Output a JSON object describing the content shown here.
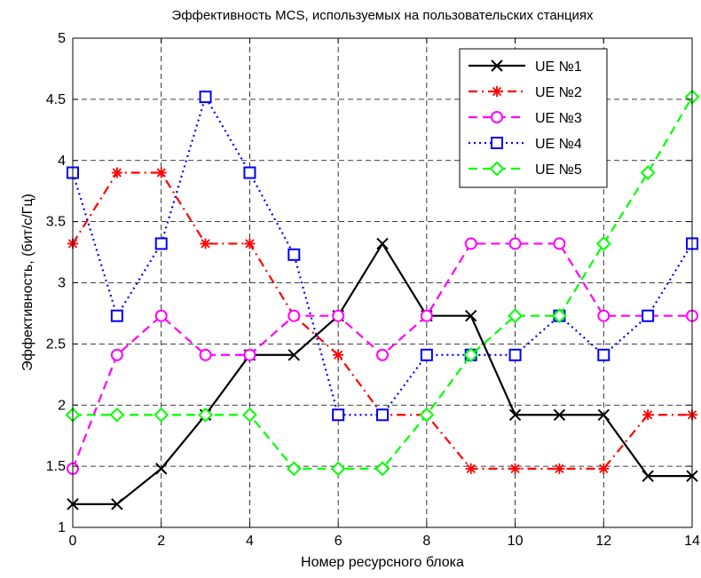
{
  "chart_data": {
    "type": "line",
    "title": "Эффективность MCS, используемых на пользовательских станциях",
    "xlabel": "Номер ресурсного блока",
    "ylabel": "Эффективность, (бит/с/Гц)",
    "xlim": [
      0,
      14
    ],
    "ylim": [
      1,
      5
    ],
    "xticks": [
      "0",
      "2",
      "4",
      "6",
      "8",
      "10",
      "12",
      "14"
    ],
    "yticks": [
      "1",
      "1.5",
      "2",
      "2.5",
      "3",
      "3.5",
      "4",
      "4.5",
      "5"
    ],
    "grid": true,
    "legend_position": "top-right",
    "x": [
      0,
      1,
      2,
      3,
      4,
      5,
      6,
      7,
      8,
      9,
      10,
      11,
      12,
      13,
      14
    ],
    "series": [
      {
        "name": "UE №1",
        "color": "#000000",
        "dash": "solid",
        "marker": "x",
        "values": [
          1.19,
          1.19,
          1.48,
          1.92,
          2.41,
          2.41,
          2.73,
          3.32,
          2.73,
          2.73,
          1.92,
          1.92,
          1.92,
          1.42,
          1.42
        ]
      },
      {
        "name": "UE №2",
        "color": "#ff0000",
        "dash": "dashdot",
        "marker": "star",
        "values": [
          3.32,
          3.9,
          3.9,
          3.32,
          3.32,
          2.73,
          2.41,
          1.92,
          1.92,
          1.48,
          1.48,
          1.48,
          1.48,
          1.92,
          1.92
        ]
      },
      {
        "name": "UE №3",
        "color": "#ff00ff",
        "dash": "dashed",
        "marker": "circle",
        "values": [
          1.48,
          2.41,
          2.73,
          2.41,
          2.41,
          2.73,
          2.73,
          2.41,
          2.73,
          3.32,
          3.32,
          3.32,
          2.73,
          2.73,
          2.73
        ]
      },
      {
        "name": "UE №4",
        "color": "#0000ff",
        "dash": "dotted",
        "marker": "square",
        "values": [
          3.9,
          2.73,
          3.32,
          4.52,
          3.9,
          3.23,
          1.92,
          1.92,
          2.41,
          2.41,
          2.41,
          2.73,
          2.41,
          2.73,
          3.32
        ]
      },
      {
        "name": "UE №5",
        "color": "#00ff00",
        "dash": "dashed",
        "marker": "diamond",
        "values": [
          1.92,
          1.92,
          1.92,
          1.92,
          1.92,
          1.48,
          1.48,
          1.48,
          1.92,
          2.41,
          2.73,
          2.73,
          3.32,
          3.9,
          4.52
        ]
      }
    ]
  }
}
